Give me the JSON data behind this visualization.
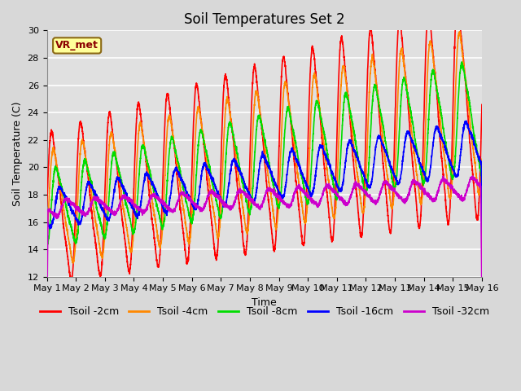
{
  "title": "Soil Temperatures Set 2",
  "xlabel": "Time",
  "ylabel": "Soil Temperature (C)",
  "ylim": [
    12,
    30
  ],
  "xlim_days": 15,
  "annotation": "VR_met",
  "plot_bg_color": "#e0e0e0",
  "fig_bg_color": "#d8d8d8",
  "grid_color": "#ffffff",
  "series": [
    {
      "label": "Tsoil -2cm",
      "color": "#ff0000",
      "amp": 5.5,
      "trend": 0.5,
      "base": 17.0,
      "phase": 0.0,
      "smooth": 1,
      "amp_grow": 0.5
    },
    {
      "label": "Tsoil -4cm",
      "color": "#ff8800",
      "amp": 4.2,
      "trend": 0.48,
      "base": 17.0,
      "phase": 0.06,
      "smooth": 2,
      "amp_grow": 0.45
    },
    {
      "label": "Tsoil -8cm",
      "color": "#00dd00",
      "amp": 2.8,
      "trend": 0.45,
      "base": 17.0,
      "phase": 0.15,
      "smooth": 5,
      "amp_grow": 0.5
    },
    {
      "label": "Tsoil -16cm",
      "color": "#0000ff",
      "amp": 1.4,
      "trend": 0.3,
      "base": 17.0,
      "phase": 0.28,
      "smooth": 10,
      "amp_grow": 0.4
    },
    {
      "label": "Tsoil -32cm",
      "color": "#cc00cc",
      "amp": 0.6,
      "trend": 0.1,
      "base": 17.0,
      "phase": 0.5,
      "smooth": 20,
      "amp_grow": 0.3
    }
  ],
  "linewidth": 1.2,
  "title_fontsize": 12,
  "label_fontsize": 9,
  "tick_fontsize": 8,
  "legend_fontsize": 9
}
